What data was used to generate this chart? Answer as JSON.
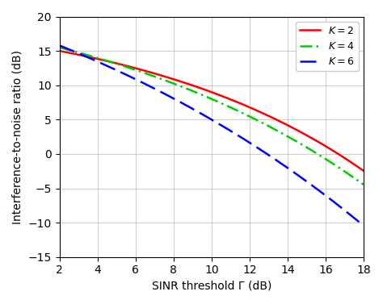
{
  "xlabel": "SINR threshold Γ (dB)",
  "ylabel": "Interference-to-noise ratio (dB)",
  "xlim": [
    2,
    18
  ],
  "ylim": [
    -15,
    20
  ],
  "xticks": [
    2,
    4,
    6,
    8,
    10,
    12,
    14,
    16,
    18
  ],
  "yticks": [
    -15,
    -10,
    -5,
    0,
    5,
    10,
    15,
    20
  ],
  "curves": [
    {
      "K": 2,
      "a": 5.597,
      "b": 0.081,
      "c": 21.58,
      "color": "#FF0000",
      "linestyle": "solid",
      "linewidth": 1.8,
      "label": "$K = 2$"
    },
    {
      "K": 4,
      "a": 9.908,
      "b": 0.0638,
      "c": 26.76,
      "color": "#00CC00",
      "linestyle": "dashdot",
      "linewidth": 1.8,
      "label": "$K = 4$"
    },
    {
      "K": 6,
      "a": 22.83,
      "b": 0.0449,
      "c": 40.77,
      "color": "#0000FF",
      "linestyle": "dashed",
      "linewidth": 1.8,
      "label": "$K = 6$"
    }
  ],
  "background_color": "#ffffff",
  "grid_color": "#b8b8b8"
}
